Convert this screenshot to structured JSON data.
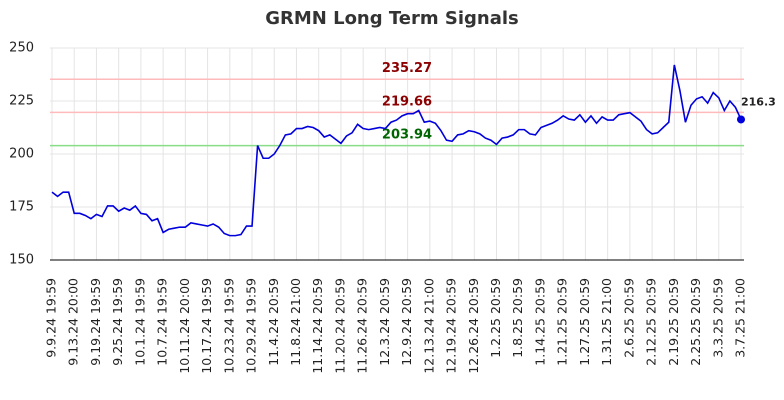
{
  "chart_data": {
    "type": "line",
    "title": "GRMN Long Term Signals",
    "categories": [
      "9.9.24 19:59",
      null,
      null,
      null,
      "9.13.24 20:00",
      null,
      null,
      null,
      "9.19.24 19:59",
      null,
      null,
      null,
      "9.25.24 19:59",
      null,
      null,
      null,
      "10.1.24 19:59",
      null,
      null,
      null,
      "10.7.24 19:59",
      null,
      null,
      null,
      "10.11.24 20:00",
      null,
      null,
      null,
      "10.17.24 19:59",
      null,
      null,
      null,
      "10.23.24 19:59",
      null,
      null,
      null,
      "10.29.24 19:59",
      null,
      null,
      null,
      "11.4.24 20:59",
      null,
      null,
      null,
      "11.8.24 21:00",
      null,
      null,
      null,
      "11.14.24 20:59",
      null,
      null,
      null,
      "11.20.24 20:59",
      null,
      null,
      null,
      "11.26.24 20:59",
      null,
      null,
      null,
      "12.3.24 20:59",
      null,
      null,
      null,
      "12.9.24 20:59",
      null,
      null,
      null,
      "12.13.24 21:00",
      null,
      null,
      null,
      "12.19.24 20:59",
      null,
      null,
      null,
      "12.26.24 20:59",
      null,
      null,
      null,
      "1.2.25 20:59",
      null,
      null,
      null,
      "1.8.25 20:59",
      null,
      null,
      null,
      "1.14.25 20:59",
      null,
      null,
      null,
      "1.21.25 20:59",
      null,
      null,
      null,
      "1.27.25 20:59",
      null,
      null,
      null,
      "1.31.25 21:00",
      null,
      null,
      null,
      "2.6.25 20:59",
      null,
      null,
      null,
      "2.12.25 20:59",
      null,
      null,
      null,
      "2.19.25 20:59",
      null,
      null,
      null,
      "2.25.25 20:59",
      null,
      null,
      null,
      "3.3.25 20:59",
      null,
      null,
      null,
      "3.7.25 21:00"
    ],
    "series": [
      {
        "name": "GRMN",
        "color": "#0000dd",
        "values": [
          182,
          180,
          182,
          182,
          172,
          172,
          171,
          169.5,
          171.5,
          170.5,
          175.5,
          175.5,
          173,
          174.5,
          173.5,
          175.5,
          172,
          171.5,
          168.5,
          169.5,
          163,
          164.5,
          165,
          165.5,
          165.5,
          167.5,
          167,
          166.5,
          166,
          167,
          165.5,
          162.5,
          161.5,
          161.5,
          162,
          166,
          166,
          204,
          198,
          198,
          200,
          204,
          209,
          209.5,
          212,
          212,
          213,
          212.5,
          211,
          208,
          209,
          207,
          205,
          208.5,
          210,
          214,
          212,
          211.5,
          212,
          212.5,
          212,
          215,
          216,
          218,
          219,
          219,
          220.5,
          215,
          215.5,
          214.5,
          211,
          206.5,
          206,
          209,
          209.5,
          211,
          210.5,
          209.5,
          207.5,
          206.5,
          204.5,
          207.5,
          208,
          209,
          211.5,
          211.5,
          209.5,
          209,
          212.5,
          213.5,
          214.5,
          216,
          218,
          216.5,
          216,
          218.5,
          215,
          218,
          214.5,
          217.5,
          216,
          216,
          218.5,
          219,
          219.5,
          217.5,
          215.5,
          211.5,
          209.5,
          210,
          212.5,
          215,
          242,
          230,
          215,
          223,
          226,
          227,
          224,
          229,
          226.5,
          220.5,
          225,
          222,
          216.3
        ]
      }
    ],
    "signals": [
      {
        "value": 235.27,
        "color": "#ffbbbb",
        "label_color": "#8b0000"
      },
      {
        "value": 219.66,
        "color": "#ffbbbb",
        "label_color": "#8b0000"
      },
      {
        "value": 203.94,
        "color": "#88dd88",
        "label_color": "#006400"
      }
    ],
    "ylim": [
      150,
      250
    ],
    "yticks": [
      150,
      175,
      200,
      225,
      250
    ],
    "grid": true
  }
}
